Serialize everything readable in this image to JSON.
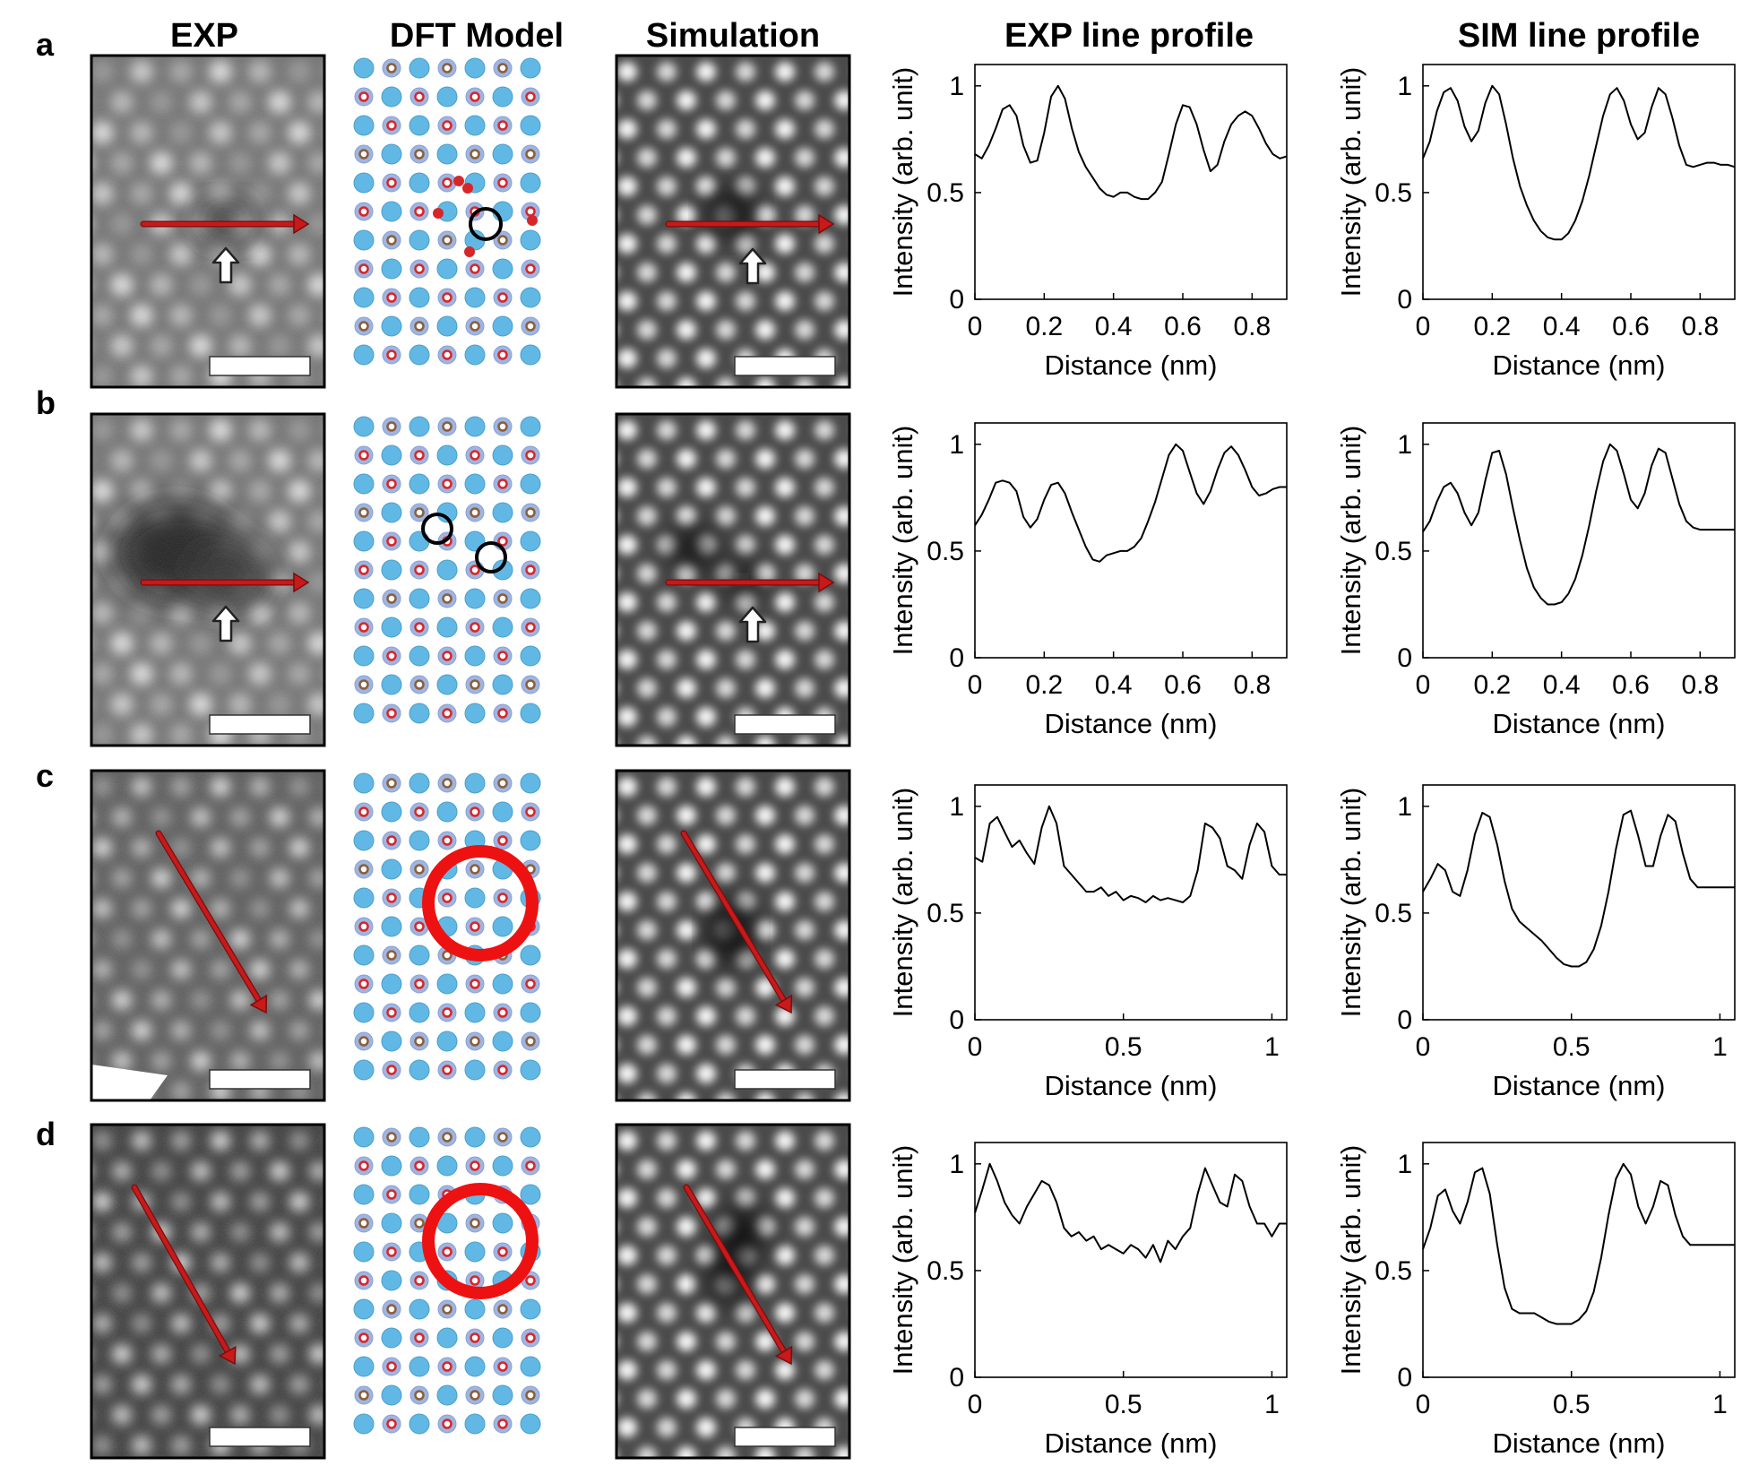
{
  "column_headers": [
    "EXP",
    "DFT Model",
    "Simulation",
    "EXP line profile",
    "SIM line profile"
  ],
  "row_labels": [
    "a",
    "b",
    "c",
    "d"
  ],
  "colors": {
    "arrow_red": "#c8191b",
    "circle_red": "#ee1111",
    "atom_large": "#62b8e4",
    "atom_small_ring": "#88a0d4",
    "atom_red": "#d7262a",
    "atom_brown": "#8b5e3a",
    "curve": "#000000"
  },
  "icons": [
    "white-up-arrow-icon",
    "red-line-arrow-icon",
    "scale-bar"
  ],
  "chart_data": [
    {
      "type": "line",
      "panel": "a",
      "name": "EXP",
      "xlabel": "Distance (nm)",
      "ylabel": "Intensity (arb. unit)",
      "xlim": [
        0,
        0.9
      ],
      "ylim": [
        0,
        1.1
      ],
      "xticks": [
        0,
        0.2,
        0.4,
        0.6,
        0.8
      ],
      "xticklabels": [
        "0",
        "0.2",
        "0.4",
        "0.6",
        "0.8"
      ],
      "yticks": [
        0,
        0.5,
        1
      ],
      "yticklabels": [
        "0",
        "0.5",
        "1"
      ],
      "x": [
        0,
        0.02,
        0.04,
        0.06,
        0.08,
        0.1,
        0.12,
        0.14,
        0.16,
        0.18,
        0.2,
        0.22,
        0.24,
        0.26,
        0.28,
        0.3,
        0.32,
        0.34,
        0.36,
        0.38,
        0.4,
        0.42,
        0.44,
        0.46,
        0.48,
        0.5,
        0.52,
        0.54,
        0.56,
        0.58,
        0.6,
        0.62,
        0.64,
        0.66,
        0.68,
        0.7,
        0.72,
        0.74,
        0.76,
        0.78,
        0.8,
        0.82,
        0.84,
        0.86,
        0.88,
        0.9
      ],
      "y": [
        0.68,
        0.66,
        0.72,
        0.8,
        0.89,
        0.91,
        0.86,
        0.72,
        0.64,
        0.65,
        0.78,
        0.95,
        1.0,
        0.94,
        0.8,
        0.69,
        0.62,
        0.57,
        0.52,
        0.49,
        0.48,
        0.5,
        0.5,
        0.48,
        0.47,
        0.47,
        0.5,
        0.55,
        0.68,
        0.82,
        0.91,
        0.9,
        0.82,
        0.7,
        0.6,
        0.63,
        0.74,
        0.82,
        0.86,
        0.88,
        0.86,
        0.8,
        0.73,
        0.68,
        0.66,
        0.67
      ]
    },
    {
      "type": "line",
      "panel": "a",
      "name": "SIM",
      "xlabel": "Distance (nm)",
      "ylabel": "Intensity (arb. unit)",
      "xlim": [
        0,
        0.9
      ],
      "ylim": [
        0,
        1.1
      ],
      "xticks": [
        0,
        0.2,
        0.4,
        0.6,
        0.8
      ],
      "xticklabels": [
        "0",
        "0.2",
        "0.4",
        "0.6",
        "0.8"
      ],
      "yticks": [
        0,
        0.5,
        1
      ],
      "yticklabels": [
        "0",
        "0.5",
        "1"
      ],
      "x": [
        0,
        0.02,
        0.04,
        0.06,
        0.08,
        0.1,
        0.12,
        0.14,
        0.16,
        0.18,
        0.2,
        0.22,
        0.24,
        0.26,
        0.28,
        0.3,
        0.32,
        0.34,
        0.36,
        0.38,
        0.4,
        0.42,
        0.44,
        0.46,
        0.48,
        0.5,
        0.52,
        0.54,
        0.56,
        0.58,
        0.6,
        0.62,
        0.64,
        0.66,
        0.68,
        0.7,
        0.72,
        0.74,
        0.76,
        0.78,
        0.8,
        0.82,
        0.84,
        0.86,
        0.88,
        0.9
      ],
      "y": [
        0.66,
        0.74,
        0.88,
        0.97,
        0.99,
        0.93,
        0.81,
        0.74,
        0.79,
        0.92,
        1.0,
        0.96,
        0.82,
        0.66,
        0.53,
        0.44,
        0.37,
        0.32,
        0.29,
        0.28,
        0.28,
        0.31,
        0.37,
        0.46,
        0.58,
        0.72,
        0.86,
        0.96,
        0.99,
        0.93,
        0.82,
        0.75,
        0.78,
        0.9,
        0.99,
        0.96,
        0.85,
        0.72,
        0.63,
        0.62,
        0.63,
        0.64,
        0.64,
        0.63,
        0.63,
        0.62
      ]
    },
    {
      "type": "line",
      "panel": "b",
      "name": "EXP",
      "xlabel": "Distance (nm)",
      "ylabel": "Intensity (arb. unit)",
      "xlim": [
        0,
        0.9
      ],
      "ylim": [
        0,
        1.1
      ],
      "xticks": [
        0,
        0.2,
        0.4,
        0.6,
        0.8
      ],
      "xticklabels": [
        "0",
        "0.2",
        "0.4",
        "0.6",
        "0.8"
      ],
      "yticks": [
        0,
        0.5,
        1
      ],
      "yticklabels": [
        "0",
        "0.5",
        "1"
      ],
      "x": [
        0,
        0.02,
        0.04,
        0.06,
        0.08,
        0.1,
        0.12,
        0.14,
        0.16,
        0.18,
        0.2,
        0.22,
        0.24,
        0.26,
        0.28,
        0.3,
        0.32,
        0.34,
        0.36,
        0.38,
        0.4,
        0.42,
        0.44,
        0.46,
        0.48,
        0.5,
        0.52,
        0.54,
        0.56,
        0.58,
        0.6,
        0.62,
        0.64,
        0.66,
        0.68,
        0.7,
        0.72,
        0.74,
        0.76,
        0.78,
        0.8,
        0.82,
        0.84,
        0.86,
        0.88,
        0.9
      ],
      "y": [
        0.62,
        0.67,
        0.74,
        0.82,
        0.83,
        0.82,
        0.78,
        0.66,
        0.61,
        0.65,
        0.74,
        0.81,
        0.82,
        0.77,
        0.68,
        0.6,
        0.52,
        0.46,
        0.45,
        0.48,
        0.49,
        0.5,
        0.5,
        0.52,
        0.56,
        0.64,
        0.73,
        0.84,
        0.95,
        1.0,
        0.97,
        0.87,
        0.77,
        0.72,
        0.78,
        0.88,
        0.96,
        0.99,
        0.95,
        0.88,
        0.8,
        0.76,
        0.77,
        0.79,
        0.8,
        0.8
      ]
    },
    {
      "type": "line",
      "panel": "b",
      "name": "SIM",
      "xlabel": "Distance (nm)",
      "ylabel": "Intensity (arb. unit)",
      "xlim": [
        0,
        0.9
      ],
      "ylim": [
        0,
        1.1
      ],
      "xticks": [
        0,
        0.2,
        0.4,
        0.6,
        0.8
      ],
      "xticklabels": [
        "0",
        "0.2",
        "0.4",
        "0.6",
        "0.8"
      ],
      "yticks": [
        0,
        0.5,
        1
      ],
      "yticklabels": [
        "0",
        "0.5",
        "1"
      ],
      "x": [
        0,
        0.02,
        0.04,
        0.06,
        0.08,
        0.1,
        0.12,
        0.14,
        0.16,
        0.18,
        0.2,
        0.22,
        0.24,
        0.26,
        0.28,
        0.3,
        0.32,
        0.34,
        0.36,
        0.38,
        0.4,
        0.42,
        0.44,
        0.46,
        0.48,
        0.5,
        0.52,
        0.54,
        0.56,
        0.58,
        0.6,
        0.62,
        0.64,
        0.66,
        0.68,
        0.7,
        0.72,
        0.74,
        0.76,
        0.78,
        0.8,
        0.82,
        0.84,
        0.86,
        0.88,
        0.9
      ],
      "y": [
        0.59,
        0.64,
        0.73,
        0.8,
        0.82,
        0.77,
        0.68,
        0.62,
        0.68,
        0.83,
        0.96,
        0.97,
        0.86,
        0.7,
        0.55,
        0.42,
        0.33,
        0.28,
        0.25,
        0.25,
        0.26,
        0.3,
        0.37,
        0.48,
        0.62,
        0.78,
        0.92,
        1.0,
        0.97,
        0.86,
        0.74,
        0.7,
        0.77,
        0.9,
        0.98,
        0.96,
        0.84,
        0.72,
        0.64,
        0.61,
        0.6,
        0.6,
        0.6,
        0.6,
        0.6,
        0.6
      ]
    },
    {
      "type": "line",
      "panel": "c",
      "name": "EXP",
      "xlabel": "Distance (nm)",
      "ylabel": "Intensity (arb. unit)",
      "xlim": [
        0,
        1.05
      ],
      "ylim": [
        0,
        1.1
      ],
      "xticks": [
        0,
        0.5,
        1
      ],
      "xticklabels": [
        "0",
        "0.5",
        "1"
      ],
      "yticks": [
        0,
        0.5,
        1
      ],
      "yticklabels": [
        "0",
        "0.5",
        "1"
      ],
      "x": [
        0,
        0.025,
        0.05,
        0.075,
        0.1,
        0.125,
        0.15,
        0.175,
        0.2,
        0.225,
        0.25,
        0.275,
        0.3,
        0.325,
        0.35,
        0.375,
        0.4,
        0.425,
        0.45,
        0.475,
        0.5,
        0.525,
        0.55,
        0.575,
        0.6,
        0.625,
        0.65,
        0.675,
        0.7,
        0.725,
        0.75,
        0.775,
        0.8,
        0.825,
        0.85,
        0.875,
        0.9,
        0.925,
        0.95,
        0.975,
        1.0,
        1.025,
        1.05
      ],
      "y": [
        0.76,
        0.74,
        0.92,
        0.95,
        0.88,
        0.81,
        0.84,
        0.78,
        0.73,
        0.9,
        1.0,
        0.92,
        0.72,
        0.68,
        0.64,
        0.6,
        0.6,
        0.62,
        0.58,
        0.6,
        0.56,
        0.58,
        0.57,
        0.55,
        0.58,
        0.56,
        0.57,
        0.56,
        0.55,
        0.58,
        0.7,
        0.92,
        0.9,
        0.85,
        0.72,
        0.7,
        0.66,
        0.82,
        0.92,
        0.88,
        0.72,
        0.68,
        0.68
      ]
    },
    {
      "type": "line",
      "panel": "c",
      "name": "SIM",
      "xlabel": "Distance (nm)",
      "ylabel": "Intensity (arb. unit)",
      "xlim": [
        0,
        1.05
      ],
      "ylim": [
        0,
        1.1
      ],
      "xticks": [
        0,
        0.5,
        1
      ],
      "xticklabels": [
        "0",
        "0.5",
        "1"
      ],
      "yticks": [
        0,
        0.5,
        1
      ],
      "yticklabels": [
        "0",
        "0.5",
        "1"
      ],
      "x": [
        0,
        0.025,
        0.05,
        0.075,
        0.1,
        0.125,
        0.15,
        0.175,
        0.2,
        0.225,
        0.25,
        0.275,
        0.3,
        0.325,
        0.35,
        0.375,
        0.4,
        0.425,
        0.45,
        0.475,
        0.5,
        0.525,
        0.55,
        0.575,
        0.6,
        0.625,
        0.65,
        0.675,
        0.7,
        0.725,
        0.75,
        0.775,
        0.8,
        0.825,
        0.85,
        0.875,
        0.9,
        0.925,
        0.95,
        0.975,
        1.0,
        1.025,
        1.05
      ],
      "y": [
        0.6,
        0.66,
        0.73,
        0.7,
        0.6,
        0.58,
        0.7,
        0.87,
        0.97,
        0.95,
        0.82,
        0.65,
        0.52,
        0.46,
        0.43,
        0.4,
        0.37,
        0.33,
        0.29,
        0.26,
        0.25,
        0.25,
        0.27,
        0.33,
        0.44,
        0.6,
        0.8,
        0.96,
        0.98,
        0.86,
        0.72,
        0.72,
        0.86,
        0.96,
        0.93,
        0.78,
        0.66,
        0.62,
        0.62,
        0.62,
        0.62,
        0.62,
        0.62
      ]
    },
    {
      "type": "line",
      "panel": "d",
      "name": "EXP",
      "xlabel": "Distance (nm)",
      "ylabel": "Intensity (arb. unit)",
      "xlim": [
        0,
        1.05
      ],
      "ylim": [
        0,
        1.1
      ],
      "xticks": [
        0,
        0.5,
        1
      ],
      "xticklabels": [
        "0",
        "0.5",
        "1"
      ],
      "yticks": [
        0,
        0.5,
        1
      ],
      "yticklabels": [
        "0",
        "0.5",
        "1"
      ],
      "x": [
        0,
        0.025,
        0.05,
        0.075,
        0.1,
        0.125,
        0.15,
        0.175,
        0.2,
        0.225,
        0.25,
        0.275,
        0.3,
        0.325,
        0.35,
        0.375,
        0.4,
        0.425,
        0.45,
        0.475,
        0.5,
        0.525,
        0.55,
        0.575,
        0.6,
        0.625,
        0.65,
        0.675,
        0.7,
        0.725,
        0.75,
        0.775,
        0.8,
        0.825,
        0.85,
        0.875,
        0.9,
        0.925,
        0.95,
        0.975,
        1.0,
        1.025,
        1.05
      ],
      "y": [
        0.77,
        0.88,
        1.0,
        0.92,
        0.82,
        0.76,
        0.72,
        0.8,
        0.86,
        0.92,
        0.9,
        0.82,
        0.7,
        0.66,
        0.68,
        0.64,
        0.66,
        0.6,
        0.62,
        0.6,
        0.58,
        0.62,
        0.6,
        0.56,
        0.62,
        0.54,
        0.64,
        0.6,
        0.66,
        0.7,
        0.86,
        0.98,
        0.9,
        0.82,
        0.8,
        0.95,
        0.92,
        0.8,
        0.72,
        0.72,
        0.66,
        0.72,
        0.72
      ]
    },
    {
      "type": "line",
      "panel": "d",
      "name": "SIM",
      "xlabel": "Distance (nm)",
      "ylabel": "Intensity (arb. unit)",
      "xlim": [
        0,
        1.05
      ],
      "ylim": [
        0,
        1.1
      ],
      "xticks": [
        0,
        0.5,
        1
      ],
      "xticklabels": [
        "0",
        "0.5",
        "1"
      ],
      "yticks": [
        0,
        0.5,
        1
      ],
      "yticklabels": [
        "0",
        "0.5",
        "1"
      ],
      "x": [
        0,
        0.025,
        0.05,
        0.075,
        0.1,
        0.125,
        0.15,
        0.175,
        0.2,
        0.225,
        0.25,
        0.275,
        0.3,
        0.325,
        0.35,
        0.375,
        0.4,
        0.425,
        0.45,
        0.475,
        0.5,
        0.525,
        0.55,
        0.575,
        0.6,
        0.625,
        0.65,
        0.675,
        0.7,
        0.725,
        0.75,
        0.775,
        0.8,
        0.825,
        0.85,
        0.875,
        0.9,
        0.925,
        0.95,
        0.975,
        1.0,
        1.025,
        1.05
      ],
      "y": [
        0.6,
        0.7,
        0.85,
        0.88,
        0.78,
        0.72,
        0.82,
        0.96,
        0.98,
        0.86,
        0.62,
        0.42,
        0.32,
        0.3,
        0.3,
        0.3,
        0.28,
        0.26,
        0.25,
        0.25,
        0.25,
        0.27,
        0.31,
        0.4,
        0.56,
        0.76,
        0.93,
        1.0,
        0.95,
        0.8,
        0.72,
        0.8,
        0.92,
        0.9,
        0.76,
        0.66,
        0.62,
        0.62,
        0.62,
        0.62,
        0.62,
        0.62,
        0.62
      ]
    }
  ]
}
